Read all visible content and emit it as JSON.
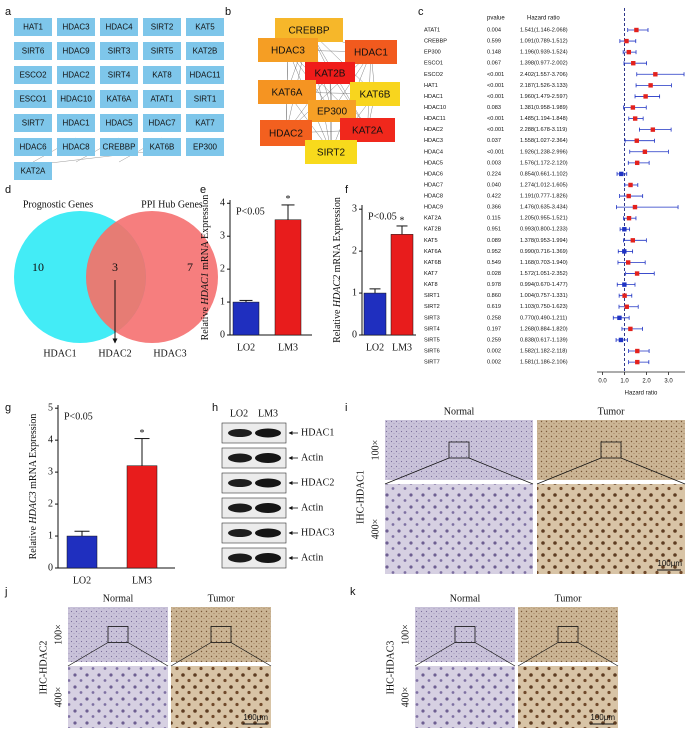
{
  "panel_labels": [
    "a",
    "b",
    "c",
    "d",
    "e",
    "f",
    "g",
    "h",
    "i",
    "j",
    "k"
  ],
  "panel_a": {
    "genes": [
      [
        "HAT1",
        "HDAC3",
        "HDAC4",
        "SIRT2",
        "KAT5"
      ],
      [
        "SIRT6",
        "HDAC9",
        "SIRT3",
        "SIRT5",
        "KAT2B"
      ],
      [
        "ESCO2",
        "HDAC2",
        "SIRT4",
        "KAT8",
        "HDAC11"
      ],
      [
        "ESCO1",
        "HDAC10",
        "KAT6A",
        "ATAT1",
        "SIRT1"
      ],
      [
        "SIRT7",
        "HDAC1",
        "HDAC5",
        "HDAC7",
        "KAT7"
      ],
      [
        "HDAC6",
        "HDAC8",
        "CREBBP",
        "KAT6B",
        "EP300"
      ],
      [
        "KAT2A"
      ]
    ]
  },
  "panel_b": {
    "nodes": [
      {
        "label": "CREBBP",
        "color": "#f6b72a"
      },
      {
        "label": "HDAC1",
        "color": "#f25a1e"
      },
      {
        "label": "HDAC3",
        "color": "#f59e24"
      },
      {
        "label": "KAT2B",
        "color": "#f01c1a"
      },
      {
        "label": "KAT6A",
        "color": "#f59422"
      },
      {
        "label": "KAT6B",
        "color": "#f8d51e"
      },
      {
        "label": "EP300",
        "color": "#f6a026"
      },
      {
        "label": "HDAC2",
        "color": "#f3601f"
      },
      {
        "label": "KAT2A",
        "color": "#f0281c"
      },
      {
        "label": "SIRT2",
        "color": "#f8da1c"
      }
    ]
  },
  "panel_c": {
    "columns": [
      "pvalue",
      "Hazard ratio"
    ],
    "genes": [
      "ATAT1",
      "CREBBP",
      "EP300",
      "ESCO1",
      "ESCO2",
      "HAT1",
      "HDAC1",
      "HDAC10",
      "HDAC11",
      "HDAC2",
      "HDAC3",
      "HDAC4",
      "HDAC5",
      "HDAC6",
      "HDAC7",
      "HDAC8",
      "HDAC9",
      "KAT2A",
      "KAT2B",
      "KAT5",
      "KAT6A",
      "KAT6B",
      "KAT7",
      "KAT8",
      "SIRT1",
      "SIRT2",
      "SIRT3",
      "SIRT4",
      "SIRT5",
      "SIRT6",
      "SIRT7"
    ],
    "pvalues": [
      "0.004",
      "0.599",
      "0.148",
      "0.067",
      "<0.001",
      "<0.001",
      "<0.001",
      "0.083",
      "<0.001",
      "<0.001",
      "0.037",
      "<0.001",
      "0.003",
      "0.224",
      "0.040",
      "0.422",
      "0.366",
      "0.115",
      "0.951",
      "0.089",
      "0.952",
      "0.549",
      "0.028",
      "0.978",
      "0.860",
      "0.619",
      "0.258",
      "0.197",
      "0.259",
      "0.002",
      "0.002"
    ],
    "hr": [
      1.541,
      1.091,
      1.196,
      1.398,
      2.402,
      2.187,
      1.96,
      1.381,
      1.485,
      2.288,
      1.558,
      1.926,
      1.576,
      0.854,
      1.274,
      1.191,
      1.476,
      1.205,
      0.993,
      1.378,
      0.99,
      1.168,
      1.572,
      0.994,
      1.004,
      1.103,
      0.77,
      1.268,
      0.838,
      1.582,
      1.581
    ],
    "lower": [
      1.146,
      0.789,
      0.939,
      0.977,
      1.557,
      1.526,
      1.479,
      0.958,
      1.194,
      1.678,
      1.027,
      1.238,
      1.172,
      0.661,
      1.012,
      0.777,
      0.635,
      0.955,
      0.8,
      0.953,
      0.716,
      0.703,
      1.051,
      0.67,
      0.757,
      0.75,
      0.49,
      0.884,
      0.617,
      1.182,
      1.186
    ],
    "upper": [
      2.068,
      1.512,
      1.524,
      2.002,
      3.706,
      3.133,
      2.597,
      1.989,
      1.848,
      3.119,
      2.364,
      2.996,
      2.12,
      1.102,
      1.605,
      1.826,
      3.434,
      1.521,
      1.233,
      1.994,
      1.369,
      1.94,
      2.352,
      1.477,
      1.331,
      1.623,
      1.211,
      1.82,
      1.139,
      2.118,
      2.106
    ],
    "hr_labels": [
      "1.541(1.146-2.068)",
      "1.091(0.789-1.512)",
      "1.196(0.939-1.524)",
      "1.398(0.977-2.002)",
      "2.402(1.557-3.706)",
      "2.187(1.526-3.133)",
      "1.960(1.479-2.597)",
      "1.381(0.958-1.989)",
      "1.485(1.194-1.848)",
      "2.288(1.678-3.119)",
      "1.558(1.027-2.364)",
      "1.926(1.238-2.996)",
      "1.576(1.172-2.120)",
      "0.854(0.661-1.102)",
      "1.274(1.012-1.605)",
      "1.191(0.777-1.826)",
      "1.476(0.635-3.434)",
      "1.205(0.955-1.521)",
      "0.993(0.800-1.233)",
      "1.378(0.953-1.994)",
      "0.990(0.716-1.369)",
      "1.168(0.703-1.940)",
      "1.572(1.051-2.352)",
      "0.994(0.670-1.477)",
      "1.004(0.757-1.331)",
      "1.103(0.750-1.623)",
      "0.770(0.490-1.211)",
      "1.268(0.884-1.820)",
      "0.838(0.617-1.139)",
      "1.582(1.182-2.118)",
      "1.581(1.186-2.106)"
    ],
    "xlim": [
      -0.25,
      3.75
    ],
    "xticks": [
      {
        "value": 0,
        "label": "0.0"
      },
      {
        "value": 1,
        "label": "1.0"
      },
      {
        "value": 2,
        "label": "2.0"
      },
      {
        "value": 3,
        "label": "3.0"
      }
    ],
    "xlabel": "Hazard ratio",
    "reference_line": 1,
    "colors": {
      "above": "#e3211c",
      "below": "#1f33c4"
    }
  },
  "panel_d": {
    "titles": [
      "Prognostic Genes",
      "PPI Hub Genes"
    ],
    "counts": [
      10,
      3,
      7
    ],
    "genes": [
      "HDAC1",
      "HDAC2",
      "HDAC3"
    ]
  },
  "chart_data": [
    {
      "type": "bar",
      "annotation": "P<0.05",
      "ylabel": [
        "Relative ",
        "HDAC1",
        " mRNA Expression"
      ],
      "categories": [
        "LO2",
        "LM3"
      ],
      "values": [
        1.0,
        3.5
      ],
      "errors": [
        0.05,
        0.45
      ],
      "colors": [
        "#1f2fbf",
        "#e81c1c"
      ],
      "significance": "*",
      "ylim": [
        0,
        4.1
      ],
      "yticks": [
        0,
        1,
        2,
        3,
        4
      ]
    },
    {
      "type": "bar",
      "annotation": "P<0.05",
      "ylabel": [
        "Relative ",
        "HDAC2",
        " mRNA Expression"
      ],
      "categories": [
        "LO2",
        "LM3"
      ],
      "values": [
        1.0,
        2.4
      ],
      "errors": [
        0.1,
        0.2
      ],
      "colors": [
        "#1f2fbf",
        "#e81c1c"
      ],
      "significance": "*",
      "ylim": [
        0,
        3.1
      ],
      "yticks": [
        0,
        1,
        2,
        3
      ]
    },
    {
      "type": "bar",
      "annotation": "P<0.05",
      "ylabel": [
        "Relative ",
        "HDAC3",
        " mRNA Expression"
      ],
      "categories": [
        "LO2",
        "LM3"
      ],
      "values": [
        1.0,
        3.2
      ],
      "errors": [
        0.15,
        0.85
      ],
      "colors": [
        "#1f2fbf",
        "#e81c1c"
      ],
      "significance": "*",
      "ylim": [
        0,
        5.1
      ],
      "yticks": [
        0,
        1,
        2,
        3,
        4,
        5
      ]
    }
  ],
  "panel_h": {
    "lanes": [
      "LO2",
      "LM3"
    ],
    "rows": [
      "HDAC1",
      "Actin",
      "HDAC2",
      "Actin",
      "HDAC3",
      "Actin"
    ]
  },
  "panel_i": {
    "columns": [
      "Normal",
      "Tumor"
    ],
    "magnifications": [
      "100×",
      "400×"
    ],
    "stain": "IHC-HDAC1",
    "scale_bar": "100μm"
  },
  "panel_j": {
    "columns": [
      "Normal",
      "Tumor"
    ],
    "magnifications": [
      "100×",
      "400×"
    ],
    "stain": "IHC-HDAC2",
    "scale_bar": "100μm"
  },
  "panel_k": {
    "columns": [
      "Normal",
      "Tumor"
    ],
    "magnifications": [
      "100×",
      "400×"
    ],
    "stain": "IHC-HDAC3",
    "scale_bar": "100μm"
  }
}
